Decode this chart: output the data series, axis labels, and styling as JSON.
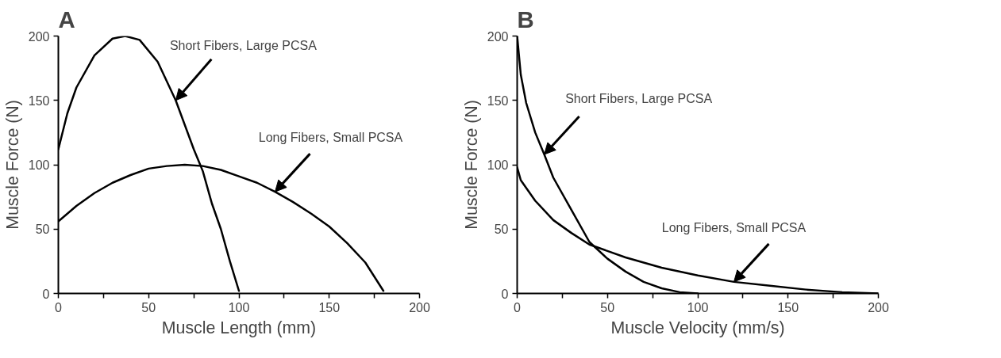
{
  "chart_data": [
    {
      "type": "line",
      "title": "A",
      "xlabel": "Muscle Length (mm)",
      "ylabel": "Muscle Force (N)",
      "xlim": [
        0,
        200
      ],
      "ylim": [
        0,
        200
      ],
      "xticks": [
        0,
        {
          "value": 25,
          "label": null
        },
        50,
        {
          "value": 75,
          "label": null
        },
        100,
        {
          "value": 125,
          "label": null
        },
        150,
        {
          "value": 175,
          "label": null
        },
        200
      ],
      "yticks": [
        0,
        50,
        100,
        150,
        200
      ],
      "grid": false,
      "series": [
        {
          "color": "#000000",
          "x": [
            0,
            5,
            10,
            20,
            30,
            37,
            45,
            55,
            65,
            75,
            80,
            85,
            90,
            95,
            100
          ],
          "values": [
            112,
            140,
            160,
            185,
            198,
            200,
            197,
            180,
            150,
            112,
            95,
            70,
            50,
            25,
            2
          ]
        },
        {
          "color": "#000000",
          "x": [
            0,
            10,
            20,
            30,
            40,
            50,
            60,
            70,
            80,
            90,
            100,
            110,
            120,
            130,
            140,
            150,
            160,
            170,
            180
          ],
          "values": [
            56,
            68,
            78,
            86,
            92,
            97,
            99,
            100,
            99,
            96,
            91,
            86,
            79,
            71,
            62,
            52,
            39,
            24,
            2
          ]
        }
      ],
      "annotations": [
        {
          "text": "Short Fibers, Large PCSA",
          "x": 65,
          "y": 150
        },
        {
          "text": "Long Fibers, Small PCSA",
          "x": 120,
          "y": 79
        }
      ]
    },
    {
      "type": "line",
      "title": "B",
      "xlabel": "Muscle Velocity (mm/s)",
      "ylabel": "Muscle Force (N)",
      "xlim": [
        0,
        200
      ],
      "ylim": [
        0,
        200
      ],
      "xticks": [
        0,
        {
          "value": 25,
          "label": null
        },
        50,
        {
          "value": 75,
          "label": null
        },
        100,
        {
          "value": 125,
          "label": null
        },
        150,
        {
          "value": 175,
          "label": null
        },
        200
      ],
      "yticks": [
        0,
        50,
        100,
        150,
        200
      ],
      "grid": false,
      "series": [
        {
          "color": "#000000",
          "x": [
            0,
            2,
            5,
            10,
            15,
            20,
            30,
            40,
            50,
            60,
            70,
            80,
            90,
            100
          ],
          "values": [
            200,
            170,
            148,
            125,
            108,
            90,
            65,
            40,
            27,
            17,
            9,
            4,
            1,
            0
          ]
        },
        {
          "color": "#000000",
          "x": [
            0,
            2,
            5,
            10,
            20,
            30,
            40,
            50,
            60,
            80,
            100,
            120,
            140,
            160,
            180,
            200
          ],
          "values": [
            98,
            88,
            82,
            72,
            57,
            47,
            38,
            33,
            28,
            20,
            14,
            9,
            6,
            3,
            1,
            0
          ]
        }
      ],
      "annotations": [
        {
          "text": "Short Fibers, Large PCSA",
          "x": 15,
          "y": 108
        },
        {
          "text": "Long Fibers, Small PCSA",
          "x": 120,
          "y": 9
        }
      ]
    }
  ]
}
